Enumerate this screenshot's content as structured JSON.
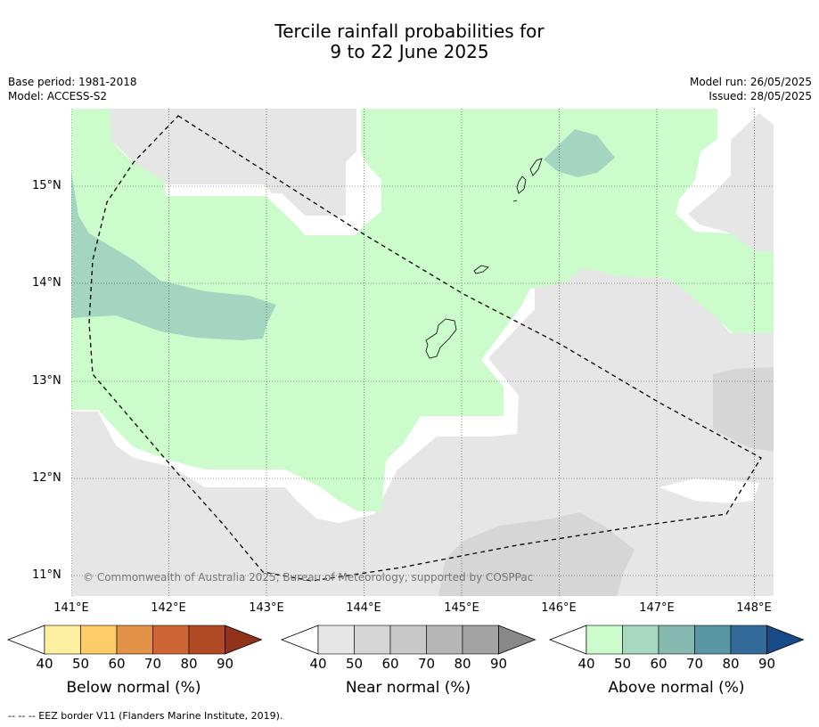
{
  "title": {
    "line1": "Tercile rainfall probabilities for",
    "line2": "9 to 22 June 2025"
  },
  "meta": {
    "base_period": "Base period: 1981-2018",
    "model": "Model: ACCESS-S2",
    "model_run": "Model run: 26/05/2025",
    "issued": "Issued: 28/05/2025"
  },
  "axes": {
    "longitudes": [
      "141°E",
      "142°E",
      "143°E",
      "144°E",
      "145°E",
      "146°E",
      "147°E",
      "148°E"
    ],
    "latitudes": [
      "15°N",
      "14°N",
      "13°N",
      "12°N",
      "11°N"
    ]
  },
  "copyright": "© Commonwealth of Australia 2025, Bureau of Meteorology, supported by COSPPac",
  "legends": [
    {
      "label": "Below normal (%)",
      "ticks": [
        "40",
        "50",
        "60",
        "70",
        "80",
        "90"
      ],
      "colors": [
        "#ffffff",
        "#fef0a0",
        "#fecd67",
        "#e29348",
        "#cf6434",
        "#b24925",
        "#93321a"
      ]
    },
    {
      "label": "Near normal (%)",
      "ticks": [
        "40",
        "50",
        "60",
        "70",
        "80",
        "90"
      ],
      "colors": [
        "#ffffff",
        "#e6e6e6",
        "#d6d6d6",
        "#c8c8c8",
        "#b6b6b6",
        "#a3a3a3",
        "#888888"
      ]
    },
    {
      "label": "Above normal (%)",
      "ticks": [
        "40",
        "50",
        "60",
        "70",
        "80",
        "90"
      ],
      "colors": [
        "#ffffff",
        "#ccfccc",
        "#a7d9c0",
        "#86b9b0",
        "#5b96a5",
        "#346a9a",
        "#174b87"
      ]
    }
  ],
  "footer": "-- -- -- EEZ border V11 (Flanders Marine Institute, 2019).",
  "map_colors": {
    "near_normal_50": "#e6e6e6",
    "near_normal_60": "#d6d6d6",
    "above_normal_50": "#ccfccc",
    "above_normal_60": "#a3d5c0",
    "below_40": "#ffffff"
  }
}
